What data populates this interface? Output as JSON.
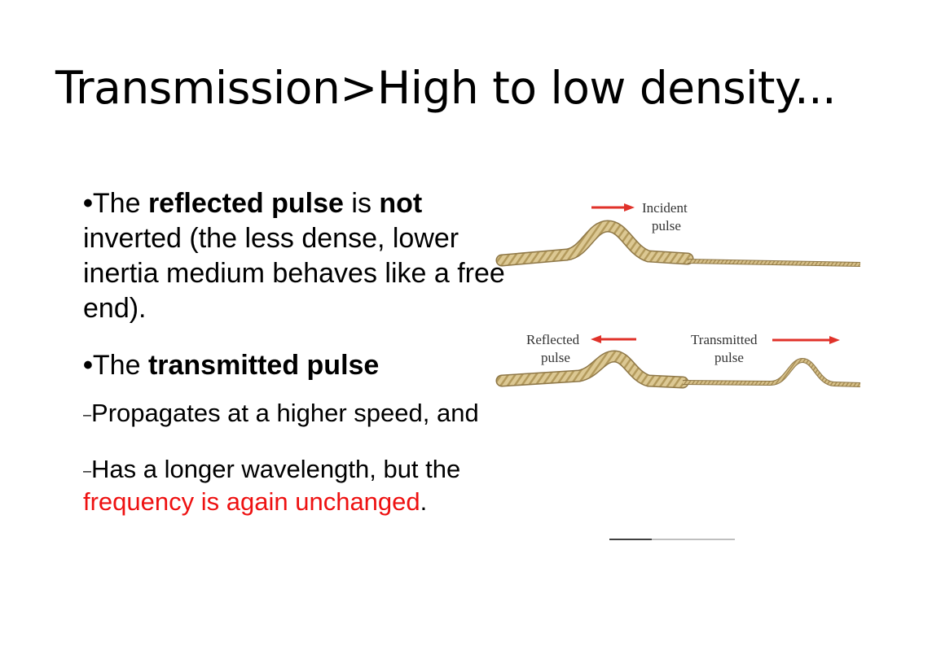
{
  "slide": {
    "title": "Transmission>High to low density...",
    "bullet1": {
      "marker": "•",
      "t1": "The ",
      "t2": "reflected pulse",
      "t3": " is ",
      "t4": "not",
      "t5": " inverted (the less dense, lower inertia medium behaves like a free end)."
    },
    "bullet2": {
      "marker": "•",
      "t1": "The ",
      "t2": "transmitted pulse"
    },
    "sub1": {
      "marker": "–",
      "text": "Propagates at a higher speed, and"
    },
    "sub2": {
      "marker": "–",
      "t1": "Has a longer wavelength, but the ",
      "t2": "frequency is again unchanged",
      "t3": "."
    }
  },
  "figure": {
    "incident_label_line1": "Incident",
    "incident_label_line2": "pulse",
    "reflected_label_line1": "Reflected",
    "reflected_label_line2": "pulse",
    "transmitted_label_line1": "Transmitted",
    "transmitted_label_line2": "pulse"
  },
  "colors": {
    "accent_red": "#ee1111",
    "arrow_red": "#e0322a",
    "rope": "#d9c48c"
  }
}
